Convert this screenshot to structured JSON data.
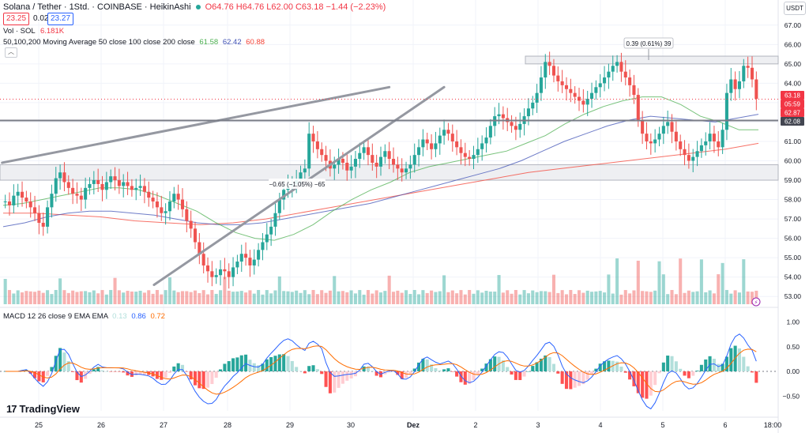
{
  "header": {
    "title": "Solana / Tether · 1Std. · COINBASE · HeikinAshi",
    "ohlc": "O64.76 H64.76 L62.00 C63.18 −1.44 (−2.23%)",
    "bid": "23.25",
    "spread": "0.02",
    "ask": "23.27"
  },
  "volume_legend": {
    "label": "Vol · SOL",
    "value": "6.181K"
  },
  "ma_legend": {
    "label": "50,100,200 Moving Average 50 close 100 close 200 close",
    "v50": "61.58",
    "v100": "62.42",
    "v200": "60.88"
  },
  "macd_legend": {
    "label": "MACD 12 26 close 9 EMA EMA",
    "hist": "0.13",
    "macd": "0.86",
    "signal": "0.72"
  },
  "currency_button": "USDT",
  "collapse_icon": "chevron-up-icon",
  "price_tags": [
    {
      "value": "63.18",
      "color": "#f23645"
    },
    {
      "value": "05:59",
      "color": "#f23645"
    },
    {
      "value": "62.87",
      "color": "#f23645"
    },
    {
      "value": "62.08",
      "color": "#434651"
    }
  ],
  "annotations": {
    "measure_top": "0.39 (0.61%) 39",
    "measure_bottom": "−0.65 (−1.05%) −65"
  },
  "brand": "TradingView",
  "colors": {
    "up": "#26a69a",
    "down": "#ef5350",
    "ma50": "#4caf50",
    "ma100": "#3f51b5",
    "ma200": "#f44336",
    "macd_line": "#2962ff",
    "signal_line": "#ff6d00"
  },
  "chart_data": {
    "type": "candlestick",
    "price_axis": {
      "ticks": [
        "67.00",
        "66.00",
        "65.00",
        "64.00",
        "63.00",
        "62.00",
        "61.00",
        "60.00",
        "59.00",
        "58.00",
        "57.00",
        "56.00",
        "55.00",
        "54.00",
        "53.00"
      ]
    },
    "macd_axis": {
      "ticks": [
        "1.00",
        "0.50",
        "0.00",
        "−0.50"
      ]
    },
    "time_axis": {
      "ticks": [
        "25",
        "26",
        "27",
        "28",
        "29",
        "30",
        "Dez",
        "2",
        "3",
        "4",
        "5",
        "6",
        "18:00"
      ]
    },
    "ha_close": [
      57.9,
      57.7,
      58.2,
      58.4,
      58.1,
      57.9,
      57.6,
      57.3,
      56.8,
      56.6,
      57.6,
      58.3,
      59.1,
      59.4,
      58.9,
      58.6,
      58.3,
      58.2,
      58.0,
      58.6,
      58.8,
      59.0,
      58.8,
      58.5,
      58.9,
      59.2,
      59.0,
      58.7,
      58.9,
      58.7,
      58.5,
      58.6,
      58.7,
      58.4,
      58.1,
      57.9,
      57.6,
      57.3,
      57.4,
      57.9,
      58.3,
      58.0,
      57.5,
      56.9,
      56.5,
      55.8,
      55.2,
      54.6,
      54.3,
      54.0,
      54.1,
      54.4,
      54.3,
      54.0,
      54.5,
      54.8,
      55.2,
      55.0,
      54.6,
      54.9,
      55.4,
      55.8,
      56.2,
      56.6,
      57.3,
      58.0,
      58.5,
      58.7,
      58.8,
      59.0,
      59.4,
      59.6,
      61.4,
      61.0,
      60.6,
      60.3,
      60.0,
      59.6,
      59.8,
      60.1,
      59.9,
      59.5,
      59.7,
      60.1,
      60.4,
      60.7,
      60.3,
      59.9,
      59.7,
      60.2,
      60.5,
      60.1,
      59.8,
      59.6,
      59.4,
      59.6,
      59.8,
      60.3,
      60.7,
      61.1,
      60.9,
      60.6,
      60.9,
      61.3,
      61.6,
      61.4,
      61.0,
      60.7,
      60.4,
      60.2,
      60.1,
      60.3,
      60.6,
      60.9,
      61.2,
      61.8,
      62.3,
      62.4,
      62.2,
      62.0,
      61.8,
      61.6,
      61.9,
      62.3,
      62.7,
      63.0,
      63.5,
      64.3,
      65.1,
      64.9,
      64.4,
      64.1,
      63.9,
      63.7,
      63.5,
      63.3,
      63.1,
      62.9,
      63.2,
      63.5,
      63.8,
      64.0,
      64.3,
      64.6,
      64.9,
      65.1,
      64.6,
      64.3,
      63.9,
      63.4,
      62.1,
      61.4,
      61.0,
      60.9,
      61.1,
      61.4,
      61.8,
      62.0,
      61.5,
      61.0,
      60.6,
      60.3,
      60.0,
      60.2,
      60.5,
      60.8,
      61.0,
      61.4,
      61.0,
      60.7,
      61.6,
      63.5,
      64.2,
      63.7,
      64.1,
      64.9,
      64.8,
      64.2,
      63.2
    ],
    "ma50": [
      57.7,
      57.8,
      58.0,
      58.2,
      58.4,
      58.6,
      58.6,
      58.5,
      58.2,
      57.8,
      57.4,
      56.8,
      56.3,
      56.0,
      55.9,
      56.2,
      56.7,
      57.4,
      58.0,
      58.5,
      58.9,
      59.4,
      59.7,
      59.9,
      60.1,
      60.3,
      60.5,
      60.9,
      61.3,
      61.9,
      62.4,
      62.8,
      63.1,
      63.3,
      63.3,
      62.9,
      62.3,
      62.0,
      61.6,
      61.6
    ],
    "ma100": [
      56.6,
      56.8,
      57.1,
      57.3,
      57.4,
      57.4,
      57.3,
      57.2,
      57.0,
      56.8,
      56.7,
      56.7,
      56.8,
      57.0,
      57.2,
      57.4,
      57.6,
      57.8,
      58.1,
      58.4,
      58.7,
      59.0,
      59.3,
      59.6,
      60.0,
      60.5,
      61.0,
      61.4,
      61.8,
      62.1,
      62.3,
      62.2,
      62.1,
      62.0,
      62.2,
      62.4
    ],
    "ma200": [
      57.3,
      57.3,
      57.2,
      57.1,
      56.9,
      56.8,
      56.7,
      56.8,
      57.0,
      57.3,
      57.6,
      57.9,
      58.2,
      58.5,
      58.8,
      59.1,
      59.4,
      59.6,
      59.8,
      60.0,
      60.2,
      60.4,
      60.6,
      60.9
    ],
    "trend_lines": [
      {
        "name": "upper-trend",
        "from": [
          0,
          59.9
        ],
        "to": [
          91,
          63.8
        ]
      },
      {
        "name": "lower-trend",
        "from": [
          36,
          53.6
        ],
        "to": [
          104,
          63.8
        ]
      }
    ],
    "horizontal_levels": [
      62.08
    ],
    "zones": [
      {
        "from": 65.0,
        "to": 65.4
      },
      {
        "from": 59.0,
        "to": 59.8
      }
    ]
  }
}
